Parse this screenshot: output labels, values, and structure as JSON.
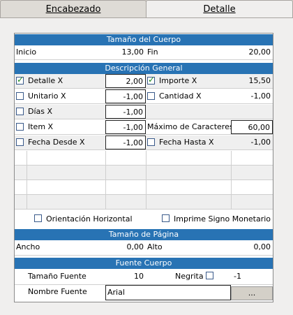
{
  "tabs": [
    {
      "label": "Encabezado"
    },
    {
      "label": "Detalle"
    }
  ],
  "tamano_cuerpo": {
    "header": "Tamaño del Cuerpo",
    "inicio_label": "Inicio",
    "inicio_value": "13,00",
    "fin_label": "Fin",
    "fin_value": "20,00"
  },
  "descripcion": {
    "header": "Descripción General",
    "rows": [
      {
        "left_label": "Detalle X",
        "left_checked": true,
        "left_value": "2,00",
        "right_label": "Importe X",
        "right_checked": true,
        "right_value": "15,50"
      },
      {
        "left_label": "Unitario X",
        "left_checked": false,
        "left_value": "-1,00",
        "right_label": "Cantidad X",
        "right_checked": false,
        "right_value": "-1,00"
      },
      {
        "left_label": "Días X",
        "left_checked": false,
        "left_value": "-1,00"
      },
      {
        "left_label": "Item X",
        "left_checked": false,
        "left_value": "-1,00",
        "right_label": "Máximo de Caracteres",
        "right_value": "60,00"
      },
      {
        "left_label": "Fecha Desde X",
        "left_checked": false,
        "left_value": "-1,00",
        "right_label": "Fecha Hasta X",
        "right_checked": false,
        "right_value": "-1,00"
      }
    ],
    "orientacion_label": "Orientación Horizontal",
    "orientacion_checked": false,
    "imprime_label": "Imprime Signo Monetario",
    "imprime_checked": false
  },
  "tamano_pagina": {
    "header": "Tamaño de Página",
    "ancho_label": "Ancho",
    "ancho_value": "0,00",
    "alto_label": "Alto",
    "alto_value": "0,00"
  },
  "fuente": {
    "header": "Fuente Cuerpo",
    "tamano_label": "Tamaño Fuente",
    "tamano_value": "10",
    "negrita_label": "Negrita",
    "negrita_checked": false,
    "negrita_value": "-1",
    "nombre_label": "Nombre Fuente",
    "nombre_value": "Arial",
    "browse_label": "..."
  }
}
